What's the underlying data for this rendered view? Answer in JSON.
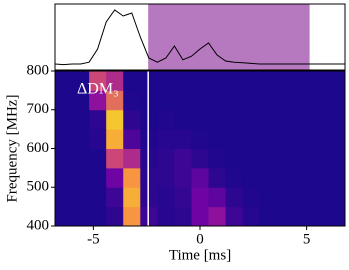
{
  "chart_data": [
    {
      "type": "line",
      "color": "#000000",
      "x": [
        -6.8,
        -6.4,
        -6.0,
        -5.6,
        -5.2,
        -4.8,
        -4.4,
        -4.0,
        -3.6,
        -3.2,
        -2.8,
        -2.4,
        -2.0,
        -1.6,
        -1.2,
        -0.8,
        -0.4,
        0.0,
        0.4,
        0.8,
        1.2,
        1.6,
        2.0,
        2.4,
        2.8,
        3.2,
        3.6,
        4.0,
        4.4,
        4.8,
        5.2,
        5.6,
        6.0,
        6.4,
        6.8
      ],
      "values": [
        0.05,
        0.04,
        0.05,
        0.05,
        0.08,
        0.3,
        0.75,
        0.95,
        0.85,
        0.9,
        0.5,
        0.15,
        0.08,
        0.15,
        0.35,
        0.12,
        0.18,
        0.3,
        0.4,
        0.2,
        0.1,
        0.08,
        0.07,
        0.06,
        0.05,
        0.05,
        0.05,
        0.05,
        0.05,
        0.05,
        0.05,
        0.05,
        0.05,
        0.05,
        0.05
      ],
      "xlim": [
        -6.8,
        6.8
      ],
      "ylim": [
        -0.05,
        1.05
      ],
      "span": [
        -2.43,
        5.14
      ],
      "span_color": "#b678bf"
    },
    {
      "type": "heatmap",
      "xlabel": "Time [ms]",
      "ylabel": "Frequency [MHz]",
      "annotation": "ΔDM₃",
      "xlim": [
        -6.8,
        6.8
      ],
      "ylim": [
        400,
        800
      ],
      "xticks": [
        -5,
        0,
        5
      ],
      "yticks": [
        400,
        500,
        600,
        700,
        800
      ],
      "vline": -2.43,
      "vline_color": "#ffffff",
      "xbins": [
        -6.8,
        -6.0,
        -5.2,
        -4.4,
        -3.6,
        -2.8,
        -2.0,
        -1.2,
        -0.4,
        0.4,
        1.2,
        2.0,
        2.8,
        3.6,
        4.4,
        5.2,
        6.0,
        6.8
      ],
      "ybins": [
        400,
        450,
        500,
        550,
        600,
        650,
        700,
        750,
        800
      ],
      "z": [
        [
          0.05,
          0.05,
          0.05,
          0.1,
          0.8,
          0.15,
          0.08,
          0.1,
          0.3,
          0.4,
          0.15,
          0.08,
          0.05,
          0.05,
          0.05,
          0.05,
          0.05
        ],
        [
          0.05,
          0.05,
          0.05,
          0.15,
          0.85,
          0.1,
          0.08,
          0.12,
          0.3,
          0.25,
          0.1,
          0.06,
          0.05,
          0.05,
          0.05,
          0.05,
          0.05
        ],
        [
          0.05,
          0.05,
          0.05,
          0.3,
          0.8,
          0.1,
          0.1,
          0.15,
          0.25,
          0.1,
          0.06,
          0.05,
          0.05,
          0.05,
          0.05,
          0.05,
          0.05
        ],
        [
          0.05,
          0.05,
          0.05,
          0.6,
          0.5,
          0.08,
          0.1,
          0.15,
          0.1,
          0.06,
          0.05,
          0.05,
          0.05,
          0.05,
          0.05,
          0.05,
          0.05
        ],
        [
          0.05,
          0.05,
          0.08,
          0.85,
          0.2,
          0.06,
          0.08,
          0.08,
          0.06,
          0.05,
          0.05,
          0.05,
          0.05,
          0.05,
          0.05,
          0.05,
          0.05
        ],
        [
          0.05,
          0.05,
          0.1,
          0.9,
          0.1,
          0.05,
          0.06,
          0.05,
          0.05,
          0.05,
          0.05,
          0.05,
          0.05,
          0.05,
          0.05,
          0.05,
          0.05
        ],
        [
          0.05,
          0.05,
          0.4,
          0.7,
          0.06,
          0.05,
          0.05,
          0.05,
          0.05,
          0.05,
          0.05,
          0.05,
          0.05,
          0.05,
          0.05,
          0.05,
          0.05
        ],
        [
          0.05,
          0.05,
          0.6,
          0.5,
          0.05,
          0.05,
          0.05,
          0.05,
          0.05,
          0.05,
          0.05,
          0.05,
          0.05,
          0.05,
          0.05,
          0.05,
          0.05
        ]
      ]
    }
  ]
}
